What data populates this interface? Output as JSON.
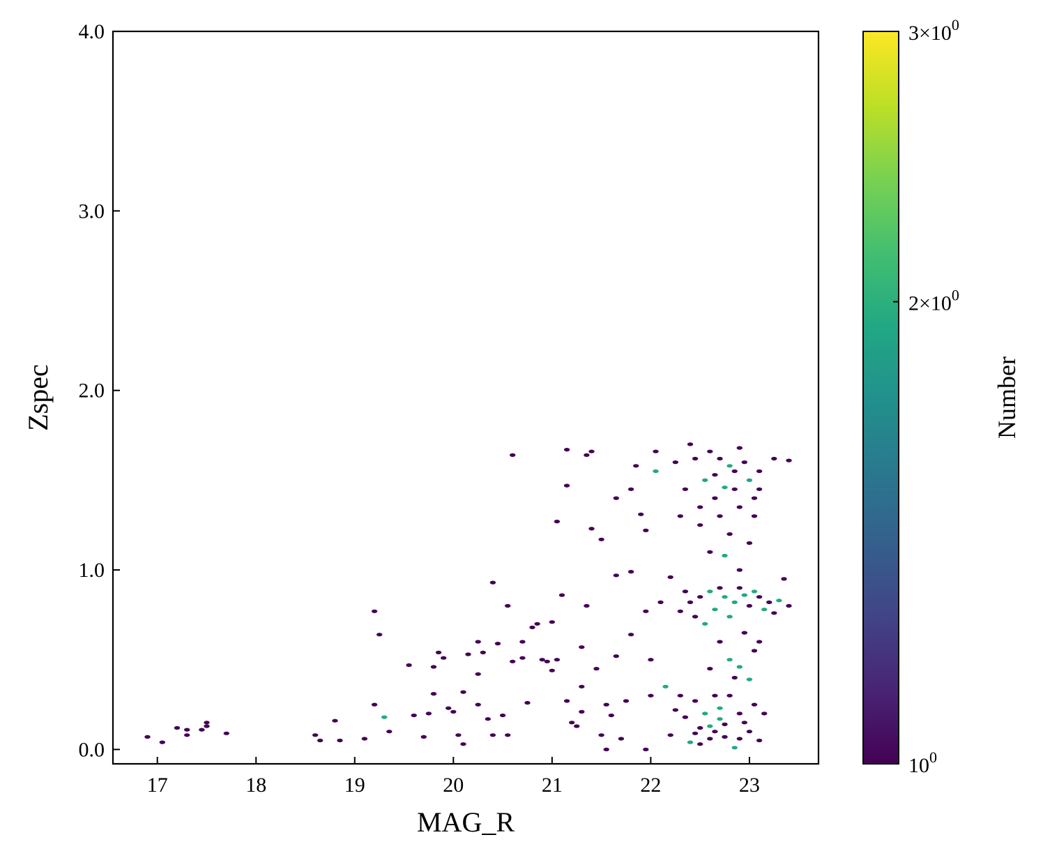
{
  "chart_data": {
    "type": "heatmap",
    "subtype": "hexbin",
    "xlabel": "MAG_R",
    "ylabel": "Zspec",
    "xlim": [
      16.55,
      23.7
    ],
    "ylim": [
      -0.08,
      4.0
    ],
    "xticks": [
      17,
      18,
      19,
      20,
      21,
      22,
      23
    ],
    "xtick_labels": [
      "17",
      "18",
      "19",
      "20",
      "21",
      "22",
      "23"
    ],
    "yticks": [
      0.0,
      1.0,
      2.0,
      3.0,
      4.0
    ],
    "ytick_labels": [
      "0.0",
      "1.0",
      "2.0",
      "3.0",
      "4.0"
    ],
    "grid": false,
    "colorbar": {
      "label": "Number",
      "scale": "log",
      "range": [
        1,
        3
      ],
      "colormap": "viridis",
      "ticks": [
        {
          "value": 1,
          "base": "10",
          "exp": "0"
        },
        {
          "value": 2,
          "base": "2×10",
          "exp": "0"
        },
        {
          "value": 3,
          "base": "3×10",
          "exp": "0"
        }
      ]
    },
    "points": [
      [
        16.9,
        0.07,
        1
      ],
      [
        17.05,
        0.04,
        1
      ],
      [
        17.2,
        0.12,
        1
      ],
      [
        17.3,
        0.11,
        1
      ],
      [
        17.3,
        0.08,
        1
      ],
      [
        17.45,
        0.11,
        1
      ],
      [
        17.5,
        0.15,
        1
      ],
      [
        17.5,
        0.13,
        1
      ],
      [
        17.7,
        0.09,
        1
      ],
      [
        18.6,
        0.08,
        1
      ],
      [
        18.65,
        0.05,
        1
      ],
      [
        18.8,
        0.16,
        1
      ],
      [
        18.85,
        0.05,
        1
      ],
      [
        19.1,
        0.06,
        1
      ],
      [
        19.2,
        0.25,
        1
      ],
      [
        19.3,
        0.18,
        2
      ],
      [
        19.35,
        0.1,
        1
      ],
      [
        19.2,
        0.77,
        1
      ],
      [
        19.25,
        0.64,
        1
      ],
      [
        19.55,
        0.47,
        1
      ],
      [
        19.6,
        0.19,
        1
      ],
      [
        19.7,
        0.07,
        1
      ],
      [
        19.75,
        0.2,
        1
      ],
      [
        19.8,
        0.31,
        1
      ],
      [
        19.8,
        0.46,
        1
      ],
      [
        19.85,
        0.54,
        1
      ],
      [
        19.9,
        0.51,
        1
      ],
      [
        19.95,
        0.23,
        1
      ],
      [
        20.0,
        0.21,
        1
      ],
      [
        20.05,
        0.08,
        1
      ],
      [
        20.1,
        0.03,
        1
      ],
      [
        20.1,
        0.32,
        1
      ],
      [
        20.15,
        0.53,
        1
      ],
      [
        20.25,
        0.25,
        1
      ],
      [
        20.25,
        0.6,
        1
      ],
      [
        20.25,
        0.42,
        1
      ],
      [
        20.3,
        0.54,
        1
      ],
      [
        20.35,
        0.17,
        1
      ],
      [
        20.4,
        0.08,
        1
      ],
      [
        20.4,
        0.93,
        1
      ],
      [
        20.45,
        0.59,
        1
      ],
      [
        20.5,
        0.19,
        1
      ],
      [
        20.55,
        0.08,
        1
      ],
      [
        20.55,
        0.8,
        1
      ],
      [
        20.6,
        0.49,
        1
      ],
      [
        20.6,
        1.64,
        1
      ],
      [
        20.7,
        0.6,
        1
      ],
      [
        20.7,
        0.51,
        1
      ],
      [
        20.75,
        0.26,
        1
      ],
      [
        20.8,
        0.68,
        1
      ],
      [
        20.85,
        0.7,
        1
      ],
      [
        20.9,
        0.5,
        1
      ],
      [
        20.95,
        0.49,
        1
      ],
      [
        21.0,
        0.44,
        1
      ],
      [
        21.0,
        0.71,
        1
      ],
      [
        21.05,
        0.5,
        1
      ],
      [
        21.1,
        0.86,
        1
      ],
      [
        21.05,
        1.27,
        1
      ],
      [
        21.15,
        0.27,
        1
      ],
      [
        21.15,
        1.67,
        1
      ],
      [
        21.15,
        1.47,
        1
      ],
      [
        21.2,
        0.15,
        1
      ],
      [
        21.25,
        0.13,
        1
      ],
      [
        21.3,
        0.21,
        1
      ],
      [
        21.3,
        0.35,
        1
      ],
      [
        21.3,
        0.57,
        1
      ],
      [
        21.35,
        0.8,
        1
      ],
      [
        21.35,
        1.64,
        1
      ],
      [
        21.4,
        1.66,
        1
      ],
      [
        21.4,
        1.23,
        1
      ],
      [
        21.45,
        0.45,
        1
      ],
      [
        21.5,
        1.17,
        1
      ],
      [
        21.55,
        0.0,
        1
      ],
      [
        21.5,
        0.08,
        1
      ],
      [
        21.55,
        0.25,
        1
      ],
      [
        21.6,
        0.19,
        1
      ],
      [
        21.65,
        0.52,
        1
      ],
      [
        21.65,
        0.97,
        1
      ],
      [
        21.65,
        1.4,
        1
      ],
      [
        21.7,
        0.06,
        1
      ],
      [
        21.75,
        0.27,
        1
      ],
      [
        21.8,
        0.64,
        1
      ],
      [
        21.8,
        0.99,
        1
      ],
      [
        21.8,
        1.45,
        1
      ],
      [
        21.85,
        1.58,
        1
      ],
      [
        21.9,
        1.31,
        1
      ],
      [
        21.95,
        0.77,
        1
      ],
      [
        21.95,
        1.22,
        1
      ],
      [
        21.95,
        0.0,
        1
      ],
      [
        22.0,
        0.5,
        1
      ],
      [
        22.0,
        0.3,
        1
      ],
      [
        22.05,
        1.55,
        2
      ],
      [
        22.05,
        1.66,
        1
      ],
      [
        22.1,
        0.82,
        1
      ],
      [
        22.15,
        0.35,
        2
      ],
      [
        22.2,
        0.96,
        1
      ],
      [
        22.25,
        1.6,
        1
      ],
      [
        22.3,
        1.3,
        1
      ],
      [
        22.4,
        0.04,
        2
      ],
      [
        22.45,
        0.09,
        1
      ],
      [
        22.5,
        0.12,
        1
      ],
      [
        22.55,
        0.2,
        2
      ],
      [
        22.6,
        0.13,
        2
      ],
      [
        22.65,
        0.1,
        1
      ],
      [
        22.7,
        0.23,
        2
      ],
      [
        22.7,
        0.17,
        2
      ],
      [
        22.75,
        0.14,
        1
      ],
      [
        22.8,
        0.3,
        1
      ],
      [
        22.85,
        0.01,
        2
      ],
      [
        22.9,
        0.2,
        1
      ],
      [
        22.95,
        0.15,
        1
      ],
      [
        23.0,
        0.1,
        1
      ],
      [
        23.05,
        0.25,
        1
      ],
      [
        23.1,
        0.05,
        1
      ],
      [
        22.3,
        0.3,
        1
      ],
      [
        22.35,
        0.18,
        1
      ],
      [
        22.2,
        0.08,
        1
      ],
      [
        22.25,
        0.22,
        1
      ],
      [
        22.45,
        0.27,
        1
      ],
      [
        22.6,
        0.06,
        1
      ],
      [
        22.9,
        0.06,
        1
      ],
      [
        23.15,
        0.2,
        1
      ],
      [
        22.5,
        0.03,
        1
      ],
      [
        22.75,
        0.07,
        1
      ],
      [
        22.65,
        0.3,
        1
      ],
      [
        22.8,
        0.5,
        2
      ],
      [
        22.85,
        0.4,
        1
      ],
      [
        22.9,
        0.46,
        2
      ],
      [
        23.0,
        0.39,
        2
      ],
      [
        23.05,
        0.55,
        1
      ],
      [
        22.6,
        0.45,
        1
      ],
      [
        22.7,
        0.6,
        1
      ],
      [
        22.95,
        0.65,
        1
      ],
      [
        23.1,
        0.6,
        1
      ],
      [
        22.55,
        0.7,
        2
      ],
      [
        22.65,
        0.78,
        2
      ],
      [
        22.75,
        0.85,
        2
      ],
      [
        22.85,
        0.82,
        2
      ],
      [
        22.95,
        0.86,
        2
      ],
      [
        23.05,
        0.88,
        2
      ],
      [
        23.15,
        0.78,
        2
      ],
      [
        23.3,
        0.83,
        2
      ],
      [
        22.6,
        0.88,
        2
      ],
      [
        22.8,
        0.74,
        2
      ],
      [
        23.0,
        0.8,
        1
      ],
      [
        22.4,
        0.82,
        1
      ],
      [
        22.5,
        0.85,
        1
      ],
      [
        22.7,
        0.9,
        1
      ],
      [
        22.9,
        0.9,
        1
      ],
      [
        23.1,
        0.85,
        1
      ],
      [
        23.2,
        0.82,
        1
      ],
      [
        23.25,
        0.76,
        1
      ],
      [
        22.3,
        0.77,
        1
      ],
      [
        22.45,
        0.74,
        1
      ],
      [
        22.35,
        0.88,
        1
      ],
      [
        23.4,
        0.8,
        1
      ],
      [
        23.35,
        0.95,
        1
      ],
      [
        22.75,
        1.08,
        2
      ],
      [
        22.8,
        1.2,
        1
      ],
      [
        22.9,
        1.0,
        1
      ],
      [
        23.0,
        1.15,
        1
      ],
      [
        22.6,
        1.1,
        1
      ],
      [
        22.5,
        1.25,
        1
      ],
      [
        22.7,
        1.3,
        1
      ],
      [
        22.9,
        1.35,
        1
      ],
      [
        23.05,
        1.4,
        1
      ],
      [
        22.65,
        1.4,
        1
      ],
      [
        22.55,
        1.5,
        2
      ],
      [
        22.75,
        1.46,
        2
      ],
      [
        22.8,
        1.58,
        2
      ],
      [
        23.0,
        1.5,
        2
      ],
      [
        22.65,
        1.53,
        1
      ],
      [
        22.85,
        1.55,
        1
      ],
      [
        22.95,
        1.6,
        1
      ],
      [
        23.1,
        1.55,
        1
      ],
      [
        23.25,
        1.62,
        1
      ],
      [
        23.4,
        1.61,
        1
      ],
      [
        22.45,
        1.62,
        1
      ],
      [
        22.6,
        1.66,
        1
      ],
      [
        22.9,
        1.68,
        1
      ],
      [
        22.7,
        1.62,
        1
      ],
      [
        22.4,
        1.7,
        1
      ],
      [
        23.1,
        1.45,
        1
      ],
      [
        22.35,
        1.45,
        1
      ],
      [
        22.5,
        1.35,
        1
      ],
      [
        23.05,
        1.3,
        1
      ],
      [
        22.85,
        1.45,
        1
      ]
    ]
  }
}
